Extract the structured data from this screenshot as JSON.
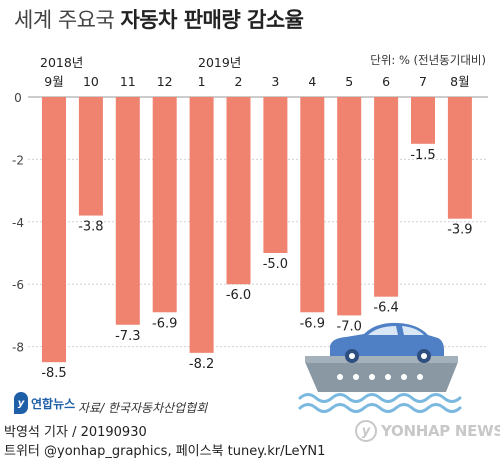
{
  "title_part1": "세계 주요국",
  "title_part2": "자동차 판매량 감소율",
  "unit": "단위: % (전년동기대비)",
  "year_2018": "2018년",
  "year_2019": "2019년",
  "source": "자료/ 한국자동차산업협회",
  "logo_mark": "y",
  "logo_text": "연합뉴스",
  "reporter": "박영석 기자 / 20190930",
  "sns": "트위터 @yonhap_graphics, 페이스북 tuney.kr/LeYN1",
  "watermark_mark": "y",
  "watermark_text": "YONHAP NEWS",
  "colors": {
    "bar": "#f08270",
    "ship_body": "#8a98a4",
    "car": "#4f7fc4",
    "wave": "#7ab8e0",
    "text": "#222222"
  },
  "chart_data": {
    "type": "bar",
    "categories": [
      "9월",
      "10",
      "11",
      "12",
      "1",
      "2",
      "3",
      "4",
      "5",
      "6",
      "7",
      "8월"
    ],
    "values": [
      -8.5,
      -3.8,
      -7.3,
      -6.9,
      -8.2,
      -6.0,
      -5.0,
      -6.9,
      -7.0,
      -6.4,
      -1.5,
      -3.9
    ],
    "value_labels": [
      "-8.5",
      "-3.8",
      "-7.3",
      "-6.9",
      "-8.2",
      "-6.0",
      "-5.0",
      "-6.9",
      "-7.0",
      "-6.4",
      "-1.5",
      "-3.9"
    ],
    "y_ticks": [
      0,
      -2,
      -4,
      -6,
      -8
    ],
    "y_tick_labels": [
      "0",
      "-2",
      "-4",
      "-6",
      "-8"
    ],
    "ylim": [
      -9,
      0
    ],
    "grid": true
  }
}
